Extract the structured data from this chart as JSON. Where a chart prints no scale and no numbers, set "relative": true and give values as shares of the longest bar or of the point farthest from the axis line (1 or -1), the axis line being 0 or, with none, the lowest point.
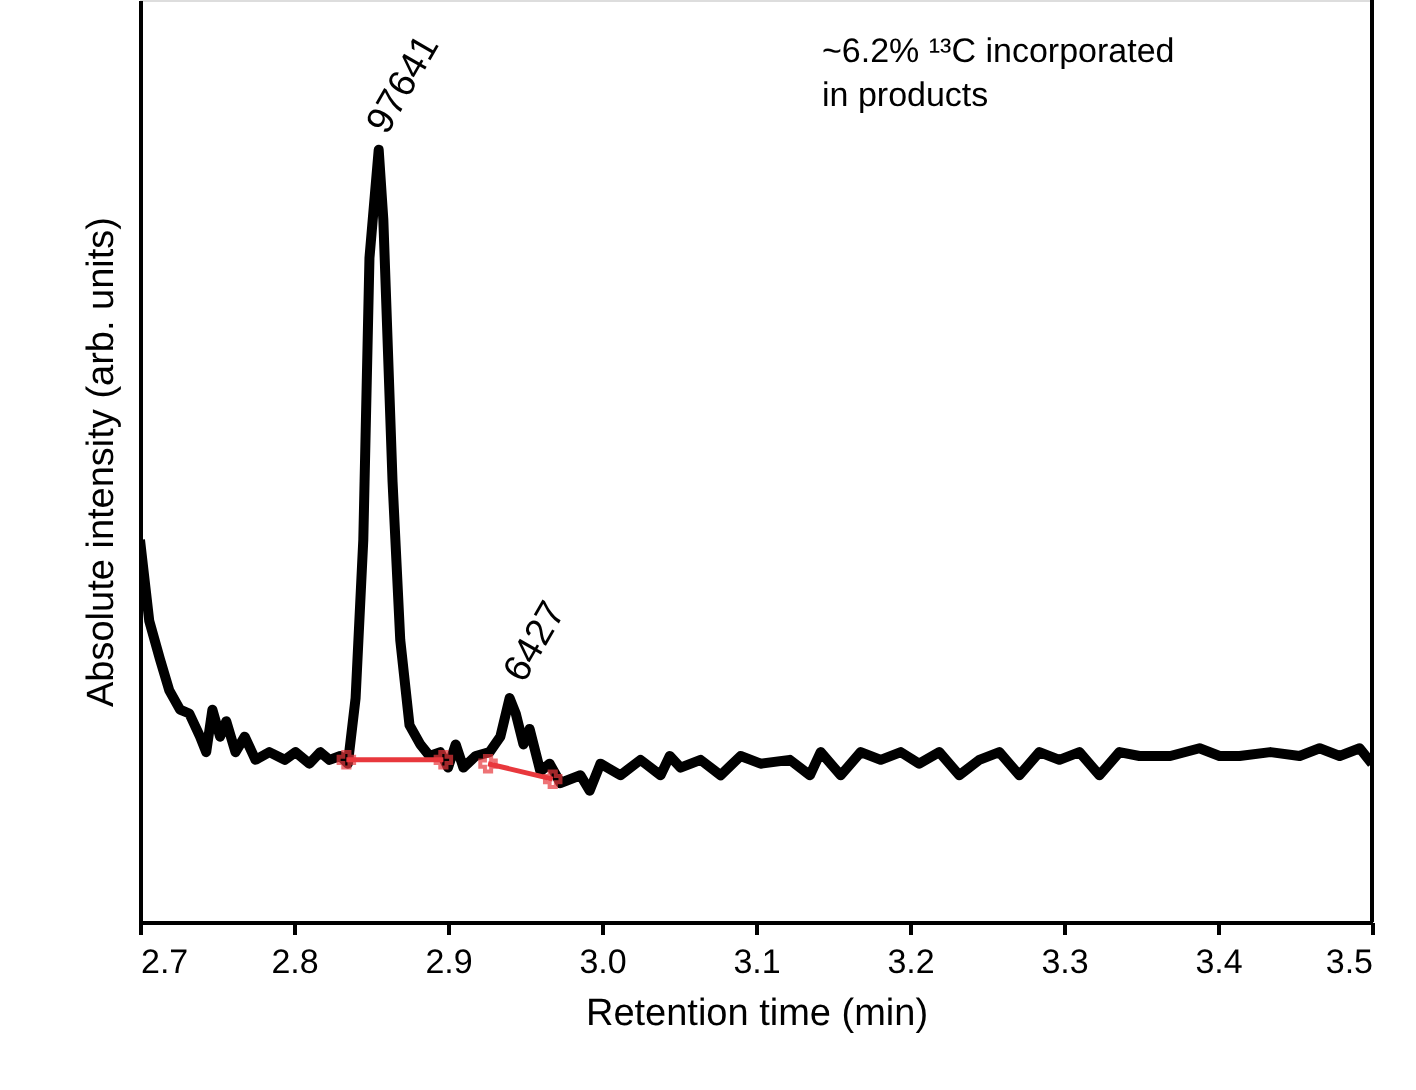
{
  "chart_data": {
    "type": "line",
    "relative": true,
    "xlabel": "Retention time (min)",
    "ylabel": "Absolute intensity (arb. units)",
    "xlim": [
      2.7,
      3.5
    ],
    "xticks": [
      {
        "value": 2.7,
        "label": "2.7"
      },
      {
        "value": 2.8,
        "label": "2.8"
      },
      {
        "value": 2.9,
        "label": "2.9"
      },
      {
        "value": 3.0,
        "label": "3.0"
      },
      {
        "value": 3.1,
        "label": "3.1"
      },
      {
        "value": 3.2,
        "label": "3.2"
      },
      {
        "value": 3.3,
        "label": "3.3"
      },
      {
        "value": 3.4,
        "label": "3.4"
      },
      {
        "value": 3.5,
        "label": "3.5"
      }
    ],
    "grid": false,
    "tick_labels": "x",
    "series": [
      {
        "color": "#000000",
        "marker": "none",
        "x": [
          2.7,
          2.706,
          2.713,
          2.719,
          2.726,
          2.732,
          2.739,
          2.743,
          2.747,
          2.752,
          2.756,
          2.762,
          2.768,
          2.775,
          2.784,
          2.794,
          2.801,
          2.81,
          2.817,
          2.823,
          2.83,
          2.835,
          2.84,
          2.845,
          2.849,
          2.855,
          2.858,
          2.864,
          2.869,
          2.875,
          2.882,
          2.888,
          2.895,
          2.9,
          2.905,
          2.91,
          2.918,
          2.927,
          2.934,
          2.94,
          2.944,
          2.949,
          2.953,
          2.96,
          2.966,
          2.973,
          2.986,
          2.992,
          2.999,
          3.012,
          3.025,
          3.038,
          3.044,
          3.051,
          3.064,
          3.077,
          3.09,
          3.103,
          3.122,
          3.135,
          3.142,
          3.155,
          3.168,
          3.181,
          3.194,
          3.206,
          3.219,
          3.232,
          3.245,
          3.258,
          3.271,
          3.284,
          3.297,
          3.31,
          3.323,
          3.336,
          3.349,
          3.369,
          3.388,
          3.401,
          3.414,
          3.434,
          3.453,
          3.466,
          3.479,
          3.492,
          3.5
        ],
        "values": [
          0.495,
          0.39,
          0.34,
          0.3,
          0.275,
          0.27,
          0.24,
          0.22,
          0.275,
          0.24,
          0.26,
          0.22,
          0.24,
          0.21,
          0.22,
          0.21,
          0.22,
          0.205,
          0.22,
          0.21,
          0.215,
          0.205,
          0.29,
          0.495,
          0.86,
          1.0,
          0.91,
          0.57,
          0.365,
          0.255,
          0.23,
          0.215,
          0.22,
          0.2,
          0.23,
          0.2,
          0.215,
          0.22,
          0.24,
          0.29,
          0.27,
          0.23,
          0.25,
          0.195,
          0.205,
          0.18,
          0.19,
          0.17,
          0.205,
          0.19,
          0.21,
          0.19,
          0.215,
          0.2,
          0.21,
          0.19,
          0.215,
          0.205,
          0.21,
          0.19,
          0.22,
          0.19,
          0.22,
          0.21,
          0.22,
          0.205,
          0.22,
          0.19,
          0.21,
          0.22,
          0.19,
          0.22,
          0.21,
          0.22,
          0.19,
          0.22,
          0.215,
          0.215,
          0.225,
          0.215,
          0.215,
          0.22,
          0.215,
          0.225,
          0.215,
          0.225,
          0.205
        ]
      },
      {
        "color": "#e8383d",
        "marker": "cross",
        "x": [
          2.834,
          2.897
        ],
        "values": [
          0.21,
          0.21
        ]
      },
      {
        "color": "#e8383d",
        "marker": "cross",
        "x": [
          2.926,
          2.968
        ],
        "values": [
          0.205,
          0.185
        ]
      }
    ],
    "annotations": [
      {
        "text": "97641",
        "x": 2.855,
        "y": 1.0
      },
      {
        "text": "6427",
        "x": 2.944,
        "y": 0.29
      },
      "~6.2% ¹³C incorporated\nin products"
    ]
  }
}
